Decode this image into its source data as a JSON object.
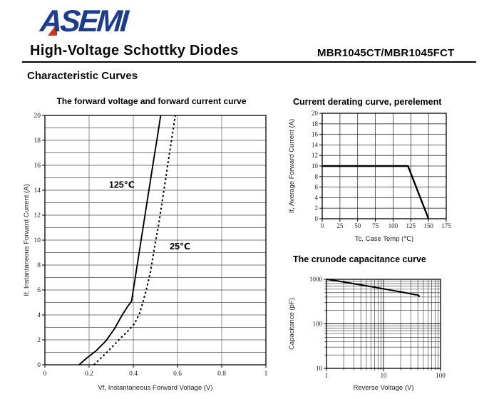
{
  "header": {
    "logo_text": "ASEMI",
    "doc_title": "High-Voltage Schottky Diodes",
    "part_number": "MBR1045CT/MBR1045FCT",
    "section_title": "Characteristic Curves"
  },
  "colors": {
    "logo_blue": "#1c3d8f",
    "logo_red": "#d6311f",
    "ink": "#000000",
    "grid_dark": "#4d4d4d",
    "grid_light": "#909090"
  },
  "chart_data": [
    {
      "id": "forward_voltage_curve",
      "type": "line",
      "title": "The forward voltage and forward current curve",
      "xlabel": "Vf, Instantaneous Forward Voltage (V)",
      "ylabel": "If, Instantaneous Forward Current (A)",
      "xscale": "linear",
      "yscale": "linear",
      "xlim": [
        0,
        1
      ],
      "ylim": [
        0,
        20
      ],
      "xgrid_step": 0.2,
      "ygrid_step": 1,
      "xticks": {
        "values": [
          0,
          0.2,
          0.4,
          0.6,
          0.8,
          1
        ],
        "labels": [
          "0",
          "0.2",
          "0.4",
          "0.6",
          "0.8",
          "1"
        ]
      },
      "yticks": {
        "values": [
          0,
          2,
          4,
          6,
          8,
          10,
          12,
          14,
          16,
          18,
          20
        ],
        "labels": [
          "0",
          "2",
          "4",
          "6",
          "8",
          "10",
          "12",
          "14",
          "16",
          "18",
          "20"
        ]
      },
      "grid": true,
      "legend_position": "inline-labels",
      "series": [
        {
          "name": "125℃",
          "line": "solid",
          "label_at": [
            0.29,
            14.2
          ],
          "points": [
            [
              0.155,
              0
            ],
            [
              0.19,
              0.55
            ],
            [
              0.23,
              1.1
            ],
            [
              0.275,
              1.9
            ],
            [
              0.315,
              2.9
            ],
            [
              0.35,
              4.0
            ],
            [
              0.375,
              4.7
            ],
            [
              0.392,
              5.1
            ],
            [
              0.4,
              6.0
            ],
            [
              0.43,
              9.4
            ],
            [
              0.46,
              12.8
            ],
            [
              0.49,
              16.2
            ],
            [
              0.51,
              18.4
            ],
            [
              0.524,
              20
            ]
          ]
        },
        {
          "name": "25℃",
          "line": "dotted",
          "label_at": [
            0.565,
            9.25
          ],
          "points": [
            [
              0.222,
              0
            ],
            [
              0.26,
              0.65
            ],
            [
              0.3,
              1.35
            ],
            [
              0.34,
              2.1
            ],
            [
              0.375,
              2.7
            ],
            [
              0.405,
              3.3
            ],
            [
              0.428,
              4.1
            ],
            [
              0.443,
              5.0
            ],
            [
              0.463,
              6.3
            ],
            [
              0.478,
              7.5
            ],
            [
              0.495,
              9.3
            ],
            [
              0.515,
              11.3
            ],
            [
              0.535,
              13.6
            ],
            [
              0.557,
              16.2
            ],
            [
              0.578,
              18.6
            ],
            [
              0.59,
              20
            ]
          ]
        }
      ]
    },
    {
      "id": "current_derating_curve",
      "type": "line",
      "title": "Current derating curve, perelement",
      "xlabel": "Tc, Case Temp (℃)",
      "ylabel": "If, Average Forward Current (A)",
      "xscale": "linear",
      "yscale": "linear",
      "xlim": [
        0,
        175
      ],
      "ylim": [
        0,
        20
      ],
      "xgrid_step": 25,
      "ygrid_step": 2,
      "xticks": {
        "values": [
          0,
          25,
          50,
          75,
          100,
          125,
          150,
          175
        ],
        "labels": [
          "0",
          "25",
          "50",
          "75",
          "100",
          "125",
          "150",
          "175"
        ]
      },
      "yticks": {
        "values": [
          0,
          2,
          4,
          6,
          8,
          10,
          12,
          14,
          16,
          18,
          20
        ],
        "labels": [
          "0",
          "2",
          "4",
          "6",
          "8",
          "10",
          "12",
          "14",
          "16",
          "18",
          "20"
        ]
      },
      "grid": true,
      "series": [
        {
          "name": "derating",
          "line": "solid",
          "points": [
            [
              0,
              10
            ],
            [
              121,
              10
            ],
            [
              150,
              0
            ]
          ]
        }
      ]
    },
    {
      "id": "junction_capacitance_curve",
      "type": "line",
      "title": "The crunode capacitance curve",
      "xlabel": "Reverse Voltage (V)",
      "ylabel": "Capacitance (pF)",
      "xscale": "log",
      "yscale": "log",
      "xlim": [
        1,
        100
      ],
      "ylim": [
        10,
        1000
      ],
      "xticks": {
        "values": [
          1,
          10,
          100
        ],
        "labels": [
          "1",
          "10",
          "100"
        ]
      },
      "yticks": {
        "values": [
          10,
          100,
          1000
        ],
        "labels": [
          "10",
          "100",
          "1000"
        ]
      },
      "grid": true,
      "series": [
        {
          "name": "capacitance",
          "line": "solid",
          "points": [
            [
              1,
              1000
            ],
            [
              1.5,
              930
            ],
            [
              2,
              870
            ],
            [
              3,
              795
            ],
            [
              5,
              715
            ],
            [
              7,
              665
            ],
            [
              10,
              610
            ],
            [
              14,
              565
            ],
            [
              20,
              523
            ],
            [
              28,
              480
            ],
            [
              36,
              452
            ],
            [
              40,
              445
            ],
            [
              43,
              408
            ]
          ]
        }
      ]
    }
  ]
}
